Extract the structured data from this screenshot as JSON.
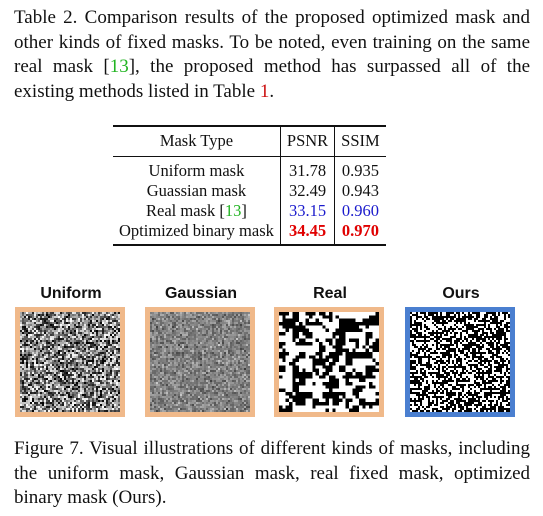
{
  "table_caption": {
    "prefix": "Table 2. Comparison results of the proposed optimized mask and other kinds of fixed masks. To be noted, even training on the same real mask [",
    "ref1": "13",
    "middle": "], the proposed method has surpassed all of the existing methods listed in Table ",
    "ref2": "1",
    "suffix": "."
  },
  "table": {
    "headers": [
      "Mask Type",
      "PSNR",
      "SSIM"
    ],
    "rows": [
      {
        "mask": "Uniform mask",
        "psnr": "31.78",
        "ssim": "0.935"
      },
      {
        "mask": "Guassian mask",
        "psnr": "32.49",
        "ssim": "0.943"
      },
      {
        "mask_prefix": "Real mask [",
        "mask_ref": "13",
        "mask_suffix": "]",
        "psnr": "33.15",
        "ssim": "0.960"
      },
      {
        "mask": "Optimized binary mask",
        "psnr": "34.45",
        "ssim": "0.970"
      }
    ]
  },
  "figure": {
    "labels": [
      "Uniform",
      "Gaussian",
      "Real",
      "Ours"
    ],
    "border_colors": {
      "default": "#f0b98a",
      "ours": "#4a7fd0"
    }
  },
  "figure_caption": "Figure 7. Visual illustrations of different kinds of masks, including the uniform mask, Gaussian mask, real fixed mask, optimized binary mask (Ours)."
}
